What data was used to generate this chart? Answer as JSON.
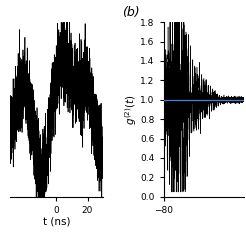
{
  "panel_b_label": "(b)",
  "panel_a_xlabel": "t (ns)",
  "panel_b_ylim": [
    0,
    1.8
  ],
  "panel_b_yticks": [
    0,
    0.2,
    0.4,
    0.6,
    0.8,
    1.0,
    1.2,
    1.4,
    1.6,
    1.8
  ],
  "panel_b_xlim": [
    -80,
    10
  ],
  "panel_b_xticks": [
    -80
  ],
  "panel_a_xlim": [
    -30,
    30
  ],
  "panel_a_xticks": [
    0,
    20
  ],
  "panel_a_ylim": [
    -1.8,
    1.8
  ],
  "line_color": "#000000",
  "blue_line_color": "#5599ff",
  "bg_color": "#ffffff",
  "noise_seed_a": 42,
  "noise_seed_b": 7,
  "tick_fontsize": 6.5,
  "label_fontsize": 7.5,
  "panel_label_fontsize": 9
}
